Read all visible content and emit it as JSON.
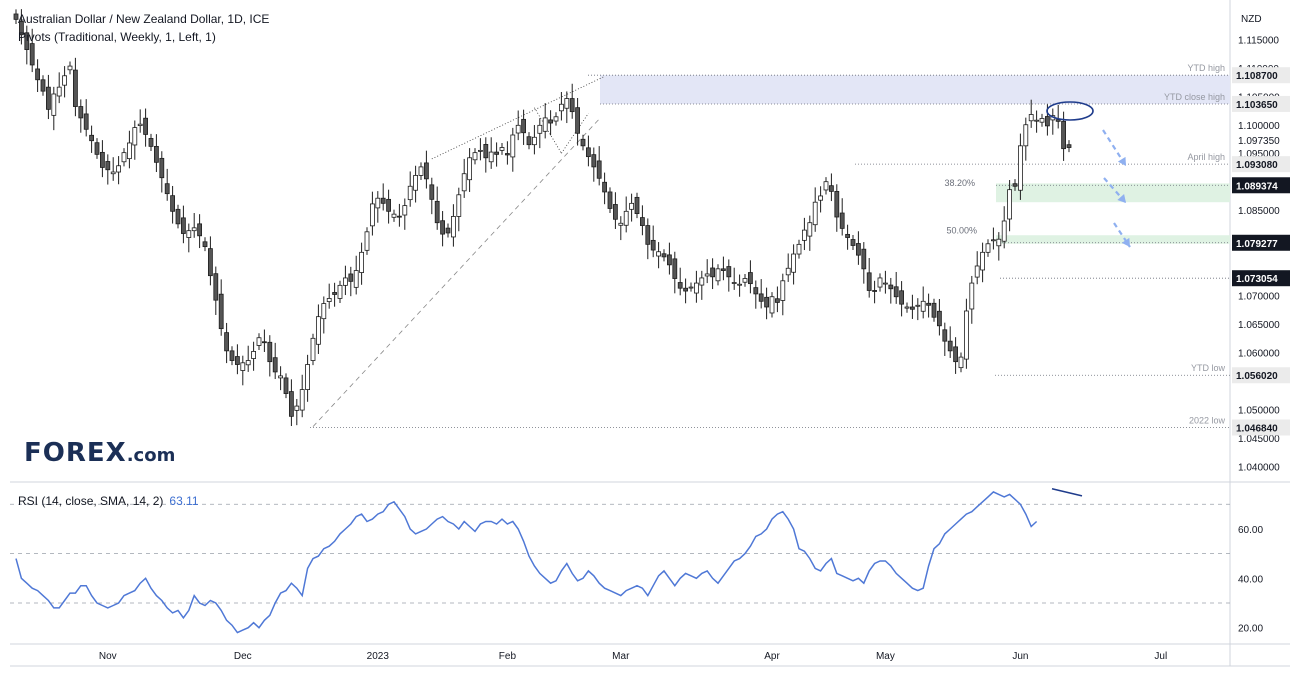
{
  "header": {
    "line1": "Australian Dollar / New Zealand Dollar, 1D, ICE",
    "line2": "Pivots (Traditional, Weekly, 1, Left, 1)"
  },
  "logo": {
    "main": "FOREX",
    "suffix": ".com"
  },
  "rsi": {
    "label": "RSI (14, close, SMA, 14, 2)",
    "value": "63.11"
  },
  "colors": {
    "up_candle": "#ffffff",
    "down_candle": "#555555",
    "candle_outline": "#1e1e1e",
    "rsi_line": "#4f78d6",
    "zone_blue": "#e3e6f6",
    "zone_green": "#dff2e3",
    "arrow": "#8fb0f0",
    "ellipse": "#1f3c8c"
  },
  "chart_data": [
    {
      "type": "candlestick",
      "title": "Australian Dollar / New Zealand Dollar, 1D, ICE",
      "y_unit": "NZD",
      "ylim": [
        1.0385,
        1.1205
      ],
      "y_ticks": [
        "1.115000",
        "1.110000",
        "1.105000",
        "1.100000",
        "1.097350",
        "1.095000",
        "1.085000",
        "1.070000",
        "1.065000",
        "1.060000",
        "1.050000",
        "1.045000",
        "1.040000"
      ],
      "x_ticks": [
        "Nov",
        "Dec",
        "2023",
        "Feb",
        "Mar",
        "Apr",
        "May",
        "Jun",
        "Jul"
      ],
      "price_labels": [
        {
          "value": "1.108700",
          "level": 1.1087,
          "style": "highlight"
        },
        {
          "value": "1.103650",
          "level": 1.10365,
          "style": "highlight"
        },
        {
          "value": "1.093080",
          "level": 1.09308,
          "style": "highlight"
        },
        {
          "value": "1.089374",
          "level": 1.089374,
          "style": "dark"
        },
        {
          "value": "1.079277",
          "level": 1.079277,
          "style": "dark"
        },
        {
          "value": "1.073054",
          "level": 1.073054,
          "style": "dark"
        },
        {
          "value": "1.056020",
          "level": 1.05602,
          "style": "highlight"
        },
        {
          "value": "1.046840",
          "level": 1.04684,
          "style": "highlight"
        }
      ],
      "annotations": [
        {
          "text": "YTD high",
          "level": 1.1087
        },
        {
          "text": "YTD close high",
          "level": 1.10365
        },
        {
          "text": "April high",
          "level": 1.09308
        },
        {
          "text": "YTD low",
          "level": 1.05602
        },
        {
          "text": "2022 low",
          "level": 1.04684
        },
        {
          "text": "38.20%",
          "level": 1.0885
        },
        {
          "text": "50.00%",
          "level": 1.0802
        }
      ],
      "zones": [
        {
          "name": "ytd-high-zone",
          "from": 1.10365,
          "to": 1.1087
        },
        {
          "name": "fib-382-zone",
          "from": 1.0864,
          "to": 1.0897
        },
        {
          "name": "fib-50-zone",
          "from": 1.0791,
          "to": 1.0806
        }
      ],
      "closes": [
        1.1185,
        1.1158,
        1.1132,
        1.1105,
        1.1079,
        1.1059,
        1.1027,
        1.1054,
        1.1066,
        1.1086,
        1.1103,
        1.1032,
        1.1012,
        1.0992,
        1.0972,
        1.0948,
        1.0925,
        1.0921,
        1.0917,
        1.0928,
        1.0951,
        1.0968,
        1.0995,
        1.1001,
        1.0983,
        1.0962,
        1.0934,
        1.0907,
        1.0879,
        1.0848,
        1.0826,
        1.0809,
        1.0814,
        1.0819,
        1.0805,
        1.0786,
        1.0735,
        1.0692,
        1.0642,
        1.0603,
        1.0586,
        1.0579,
        1.0582,
        1.0586,
        1.0602,
        1.0626,
        1.0618,
        1.0584,
        1.0566,
        1.0559,
        1.0528,
        1.0488,
        1.0506,
        1.0535,
        1.0579,
        1.0625,
        1.0663,
        1.0686,
        1.0695,
        1.0702,
        1.0718,
        1.0731,
        1.0725,
        1.0744,
        1.0776,
        1.0812,
        1.0861,
        1.0871,
        1.0862,
        1.0848,
        1.0843,
        1.0838,
        1.0858,
        1.0892,
        1.0911,
        1.0926,
        1.0905,
        1.0869,
        1.0828,
        1.0808,
        1.081,
        1.0839,
        1.0877,
        1.0914,
        1.0942,
        1.0951,
        1.0955,
        1.0942,
        1.0952,
        1.0948,
        1.096,
        1.0947,
        1.0982,
        1.0999,
        1.0986,
        1.0965,
        1.0978,
        1.0999,
        1.1012,
        1.1003,
        1.1014,
        1.1036,
        1.1046,
        1.1023,
        1.0985,
        1.0963,
        1.0944,
        1.0926,
        1.0906,
        1.0882,
        1.0853,
        1.0834,
        1.0827,
        1.0848,
        1.0862,
        1.0844,
        1.0823,
        1.079,
        1.078,
        1.0777,
        1.0768,
        1.0754,
        1.073,
        1.0713,
        1.0708,
        1.0715,
        1.0722,
        1.0731,
        1.0738,
        1.0733,
        1.0747,
        1.0744,
        1.0733,
        1.0723,
        1.072,
        1.073,
        1.0721,
        1.0703,
        1.069,
        1.068,
        1.0698,
        1.0688,
        1.0726,
        1.0748,
        1.0773,
        1.079,
        1.0815,
        1.0828,
        1.0864,
        1.0875,
        1.09,
        1.0883,
        1.0838,
        1.0818,
        1.0802,
        1.0788,
        1.0771,
        1.0747,
        1.0709,
        1.0708,
        1.0731,
        1.0722,
        1.0712,
        1.0698,
        1.0685,
        1.068,
        1.0676,
        1.0683,
        1.069,
        1.0683,
        1.0662,
        1.0647,
        1.062,
        1.0603,
        1.0584,
        1.0592,
        1.0673,
        1.0722,
        1.0752,
        1.0776,
        1.0791,
        1.0798,
        1.0799,
        1.0831,
        1.0886,
        1.0892,
        1.0963,
        1.1,
        1.1018,
        1.1008,
        1.1011,
        1.0998,
        1.1016,
        1.1006,
        1.0958,
        1.096
      ],
      "rsi": {
        "name": "RSI (14, close, SMA, 14, 2)",
        "current": 63.11,
        "ylim": [
          15,
          77
        ],
        "y_ticks": [
          "60.00",
          "40.00",
          "20.00"
        ],
        "bands": [
          30,
          50,
          70
        ],
        "values": [
          48,
          40,
          38,
          36,
          35,
          33,
          31,
          28,
          28,
          31,
          34,
          34,
          37,
          37,
          33,
          30,
          29,
          28,
          29,
          30,
          33,
          34,
          35,
          38,
          40,
          36,
          33,
          31,
          28,
          26,
          27,
          24,
          27,
          33,
          30,
          29,
          31,
          30,
          27,
          23,
          21,
          18,
          19,
          20,
          22,
          20,
          23,
          25,
          30,
          34,
          35,
          38,
          36,
          33,
          44,
          48,
          49,
          52,
          53,
          55,
          58,
          60,
          62,
          65,
          66,
          63,
          64,
          66,
          67,
          70,
          71,
          68,
          65,
          60,
          58,
          59,
          60,
          62,
          64,
          65,
          63,
          62,
          60,
          63,
          61,
          59,
          62,
          63,
          63,
          62,
          64,
          62,
          63,
          60,
          55,
          49,
          45,
          42,
          40,
          38,
          39,
          43,
          46,
          42,
          39,
          40,
          43,
          41,
          38,
          36,
          35,
          34,
          33,
          35,
          36,
          37,
          36,
          33,
          37,
          41,
          43,
          40,
          37,
          40,
          42,
          41,
          40,
          42,
          43,
          40,
          38,
          41,
          44,
          47,
          48,
          50,
          53,
          57,
          58,
          60,
          64,
          66,
          67,
          64,
          60,
          52,
          51,
          48,
          44,
          43,
          46,
          48,
          42,
          41,
          40,
          39,
          40,
          38,
          43,
          46,
          47,
          47,
          45,
          42,
          40,
          38,
          36,
          35,
          36,
          45,
          52,
          54,
          58,
          60,
          62,
          64,
          66,
          67,
          69,
          71,
          73,
          75,
          74,
          73,
          74,
          72,
          70,
          66,
          61,
          63
        ]
      }
    }
  ]
}
